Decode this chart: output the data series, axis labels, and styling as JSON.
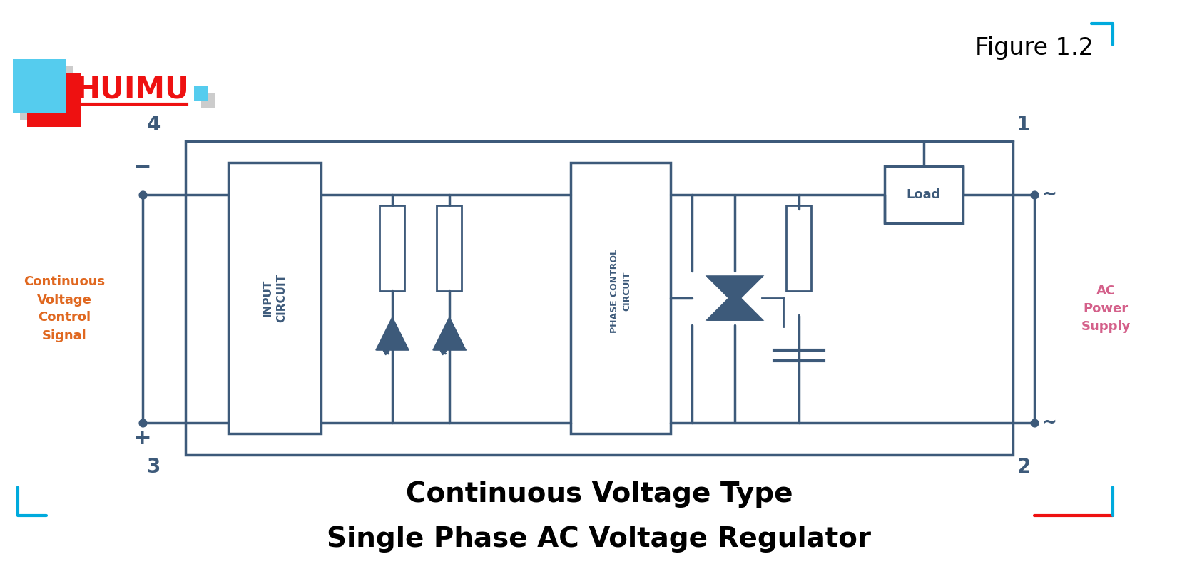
{
  "title_line1": "Continuous Voltage Type",
  "title_line2": "Single Phase AC Voltage Regulator",
  "figure_label": "Figure 1.2",
  "diagram_color": "#3d5a7a",
  "orange_color": "#e06820",
  "pink_color": "#d4608a",
  "cyan_color": "#00aadd",
  "red_color": "#ee1111",
  "bg_color": "#ffffff",
  "title_fontsize": 28,
  "label_fontsize": 18,
  "pin_fontsize": 20
}
